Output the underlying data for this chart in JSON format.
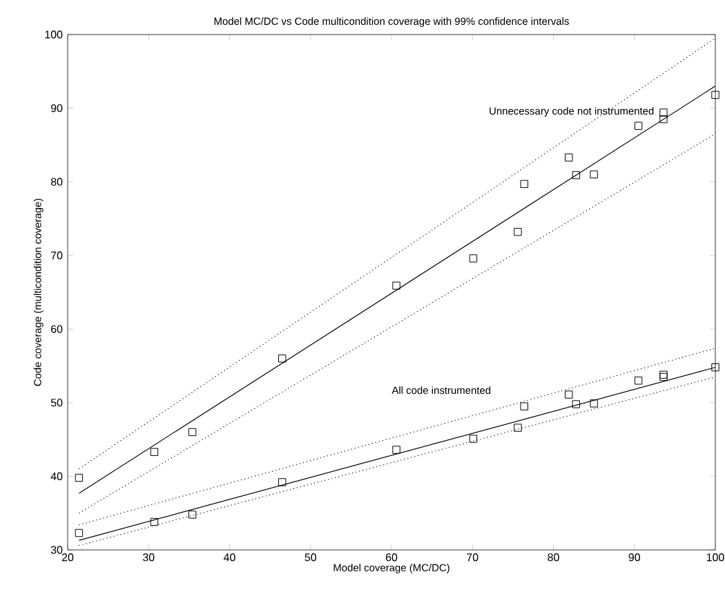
{
  "chart_data": {
    "type": "scatter",
    "title": "Model MC/DC vs Code multicondition coverage with 99% confidence intervals",
    "xlabel": "Model coverage (MC/DC)",
    "ylabel": "Code coverage (multicondition coverage)",
    "xlim": [
      20,
      100
    ],
    "ylim": [
      30,
      100
    ],
    "xticks": [
      20,
      30,
      40,
      50,
      60,
      70,
      80,
      90,
      100
    ],
    "yticks": [
      30,
      40,
      50,
      60,
      70,
      80,
      90,
      100
    ],
    "series": [
      {
        "marker": "square",
        "color": "#000000",
        "x": [
          21.4,
          30.7,
          35.4,
          46.5,
          60.6,
          70.1,
          75.6,
          76.4,
          81.9,
          82.8,
          85,
          90.5,
          93.6,
          93.6,
          100
        ],
        "values": [
          39.8,
          43.3,
          46,
          56,
          65.9,
          69.6,
          73.2,
          79.7,
          83.3,
          80.9,
          81,
          87.6,
          89.4,
          88.5,
          91.8
        ]
      },
      {
        "marker": "square",
        "color": "#000000",
        "x": [
          21.4,
          30.7,
          35.4,
          46.5,
          60.6,
          70.1,
          75.6,
          76.4,
          81.9,
          82.8,
          85,
          90.5,
          93.6,
          93.6,
          100
        ],
        "values": [
          32.3,
          33.8,
          34.8,
          39.2,
          43.6,
          45.1,
          46.6,
          49.5,
          51.1,
          49.8,
          49.9,
          53,
          53.5,
          53.8,
          54.8
        ]
      },
      {
        "type": "line",
        "line_style": "solid",
        "color": "#000000",
        "x": [
          21.4,
          100
        ],
        "values": [
          37.7,
          93
        ]
      },
      {
        "type": "line",
        "line_style": "solid",
        "color": "#000000",
        "x": [
          21.4,
          100
        ],
        "values": [
          31.3,
          54.8
        ]
      },
      {
        "type": "line",
        "line_style": "dotted",
        "color": "#000000",
        "x": [
          21.4,
          100
        ],
        "values": [
          41,
          99.5
        ]
      },
      {
        "type": "line",
        "line_style": "dotted",
        "color": "#000000",
        "x": [
          21.4,
          100
        ],
        "values": [
          35,
          86.5
        ]
      },
      {
        "type": "line",
        "line_style": "dotted",
        "color": "#000000",
        "x": [
          21.4,
          100
        ],
        "values": [
          33.4,
          57.4
        ]
      },
      {
        "type": "line",
        "line_style": "dotted",
        "color": "#000000",
        "x": [
          21.4,
          100
        ],
        "values": [
          30.6,
          53.5
        ]
      }
    ],
    "annotations": [
      "Unnecessary code not instrumented",
      "All code instrumented"
    ]
  }
}
